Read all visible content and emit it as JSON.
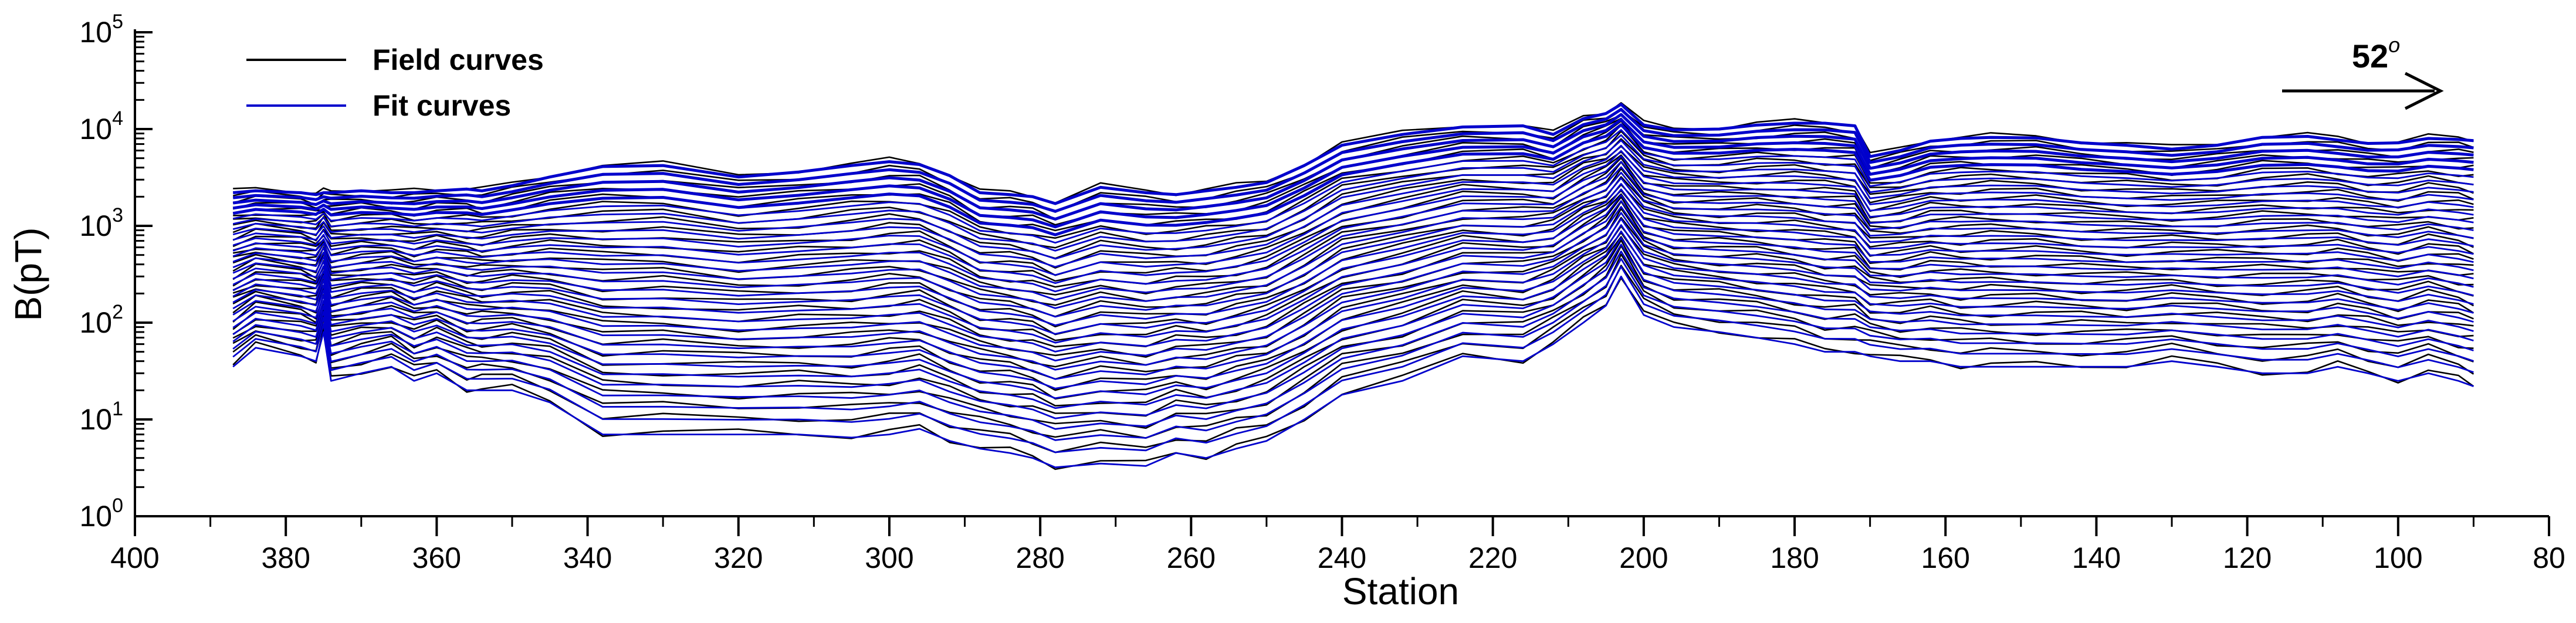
{
  "chart_data": {
    "type": "line",
    "title": "",
    "xlabel": "Station",
    "ylabel": "B(pT)",
    "x_reversed": true,
    "xlim": [
      400,
      80
    ],
    "ylim": [
      1,
      100000
    ],
    "y_scale": "log",
    "x_ticks": [
      "400",
      "380",
      "360",
      "340",
      "320",
      "300",
      "280",
      "260",
      "240",
      "220",
      "200",
      "180",
      "160",
      "140",
      "120",
      "100",
      "80"
    ],
    "y_ticks": [
      {
        "base": "10",
        "exp": "0"
      },
      {
        "base": "10",
        "exp": "1"
      },
      {
        "base": "10",
        "exp": "2"
      },
      {
        "base": "10",
        "exp": "3"
      },
      {
        "base": "10",
        "exp": "4"
      },
      {
        "base": "10",
        "exp": "5"
      }
    ],
    "grid": false,
    "legend_position": "top-left",
    "legend": [
      {
        "label": "Field curves",
        "color": "#000000"
      },
      {
        "label": "Fit curves",
        "color": "#0000cc"
      }
    ],
    "annotation": {
      "base": "52",
      "sup": "o",
      "direction": "right-arrow"
    },
    "series_count": 30,
    "stations": [
      387,
      384,
      378,
      376,
      375,
      374,
      370,
      366,
      363,
      360,
      356,
      354,
      350,
      345,
      338,
      330,
      320,
      312,
      305,
      300,
      296,
      292,
      288,
      284,
      281,
      278,
      272,
      266,
      262,
      258,
      254,
      250,
      245,
      240,
      232,
      224,
      216,
      212,
      208,
      205,
      203,
      200,
      196,
      190,
      185,
      180,
      176,
      172,
      170,
      166,
      162,
      158,
      154,
      148,
      142,
      136,
      130,
      124,
      118,
      112,
      108,
      104,
      100,
      96,
      92,
      90
    ],
    "envelope_upper_pT": [
      2200,
      2300,
      2200,
      2100,
      2200,
      2200,
      2300,
      2200,
      2200,
      2300,
      2400,
      2300,
      2600,
      3200,
      4100,
      4200,
      3200,
      3600,
      4200,
      4600,
      4300,
      3300,
      2200,
      2100,
      2000,
      1700,
      2500,
      2200,
      2100,
      2300,
      2500,
      2800,
      4200,
      6800,
      8800,
      10500,
      10800,
      8800,
      12800,
      14500,
      18000,
      11000,
      9800,
      10000,
      11000,
      11500,
      11500,
      10800,
      5200,
      6000,
      7500,
      8000,
      8200,
      8100,
      7200,
      6800,
      6200,
      6800,
      8200,
      8400,
      7700,
      7100,
      7200,
      8000,
      7800,
      7600
    ],
    "envelope_lower_pT": [
      35,
      55,
      45,
      40,
      80,
      25,
      30,
      35,
      25,
      30,
      20,
      20,
      20,
      15,
      7,
      7,
      7,
      7,
      6.5,
      7,
      8,
      6,
      5,
      4.5,
      4,
      3.2,
      3.5,
      3.3,
      4.5,
      4,
      5,
      6,
      10,
      18,
      25,
      45,
      40,
      60,
      100,
      150,
      300,
      120,
      90,
      80,
      70,
      60,
      50,
      50,
      45,
      40,
      40,
      35,
      35,
      35,
      35,
      35,
      40,
      35,
      30,
      30,
      35,
      30,
      25,
      30,
      25,
      22
    ]
  }
}
